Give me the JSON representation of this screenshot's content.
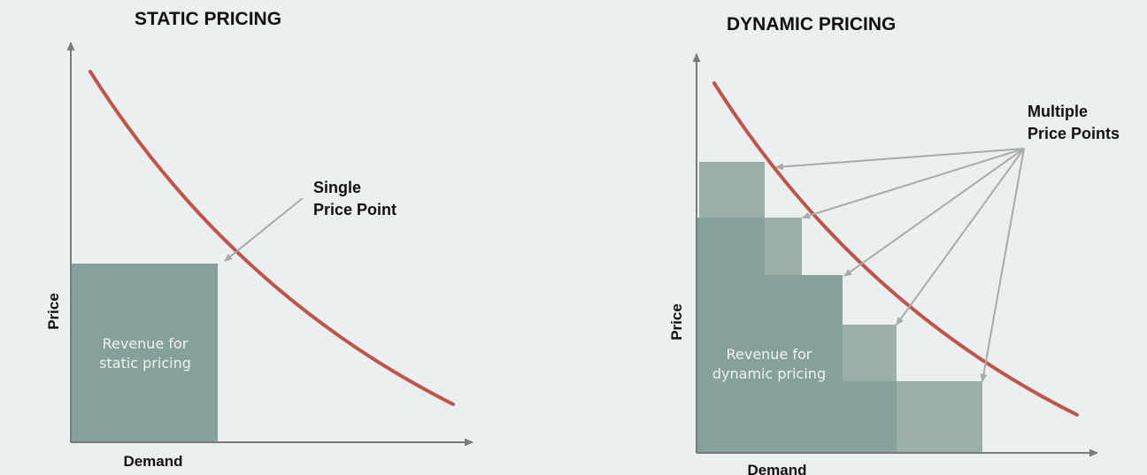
{
  "colors": {
    "background": "#eceff0",
    "curve": "#c0544a",
    "revenue_block_dark": "#86a19b",
    "revenue_block_light": "#9bb0ab",
    "axis": "#7a7a7a",
    "arrow": "#a9a9a9",
    "text": "#111111"
  },
  "static_panel": {
    "title": "STATIC PRICING",
    "x_axis_label": "Demand",
    "y_axis_label": "Price",
    "callout_line1": "Single",
    "callout_line2": "Price Point",
    "region_line1": "Revenue for",
    "region_line2": "static pricing"
  },
  "dynamic_panel": {
    "title": "DYNAMIC PRICING",
    "x_axis_label": "Demand",
    "y_axis_label": "Price",
    "callout_line1": "Multiple",
    "callout_line2": "Price Points",
    "region_line1": "Revenue for",
    "region_line2": "dynamic pricing"
  }
}
